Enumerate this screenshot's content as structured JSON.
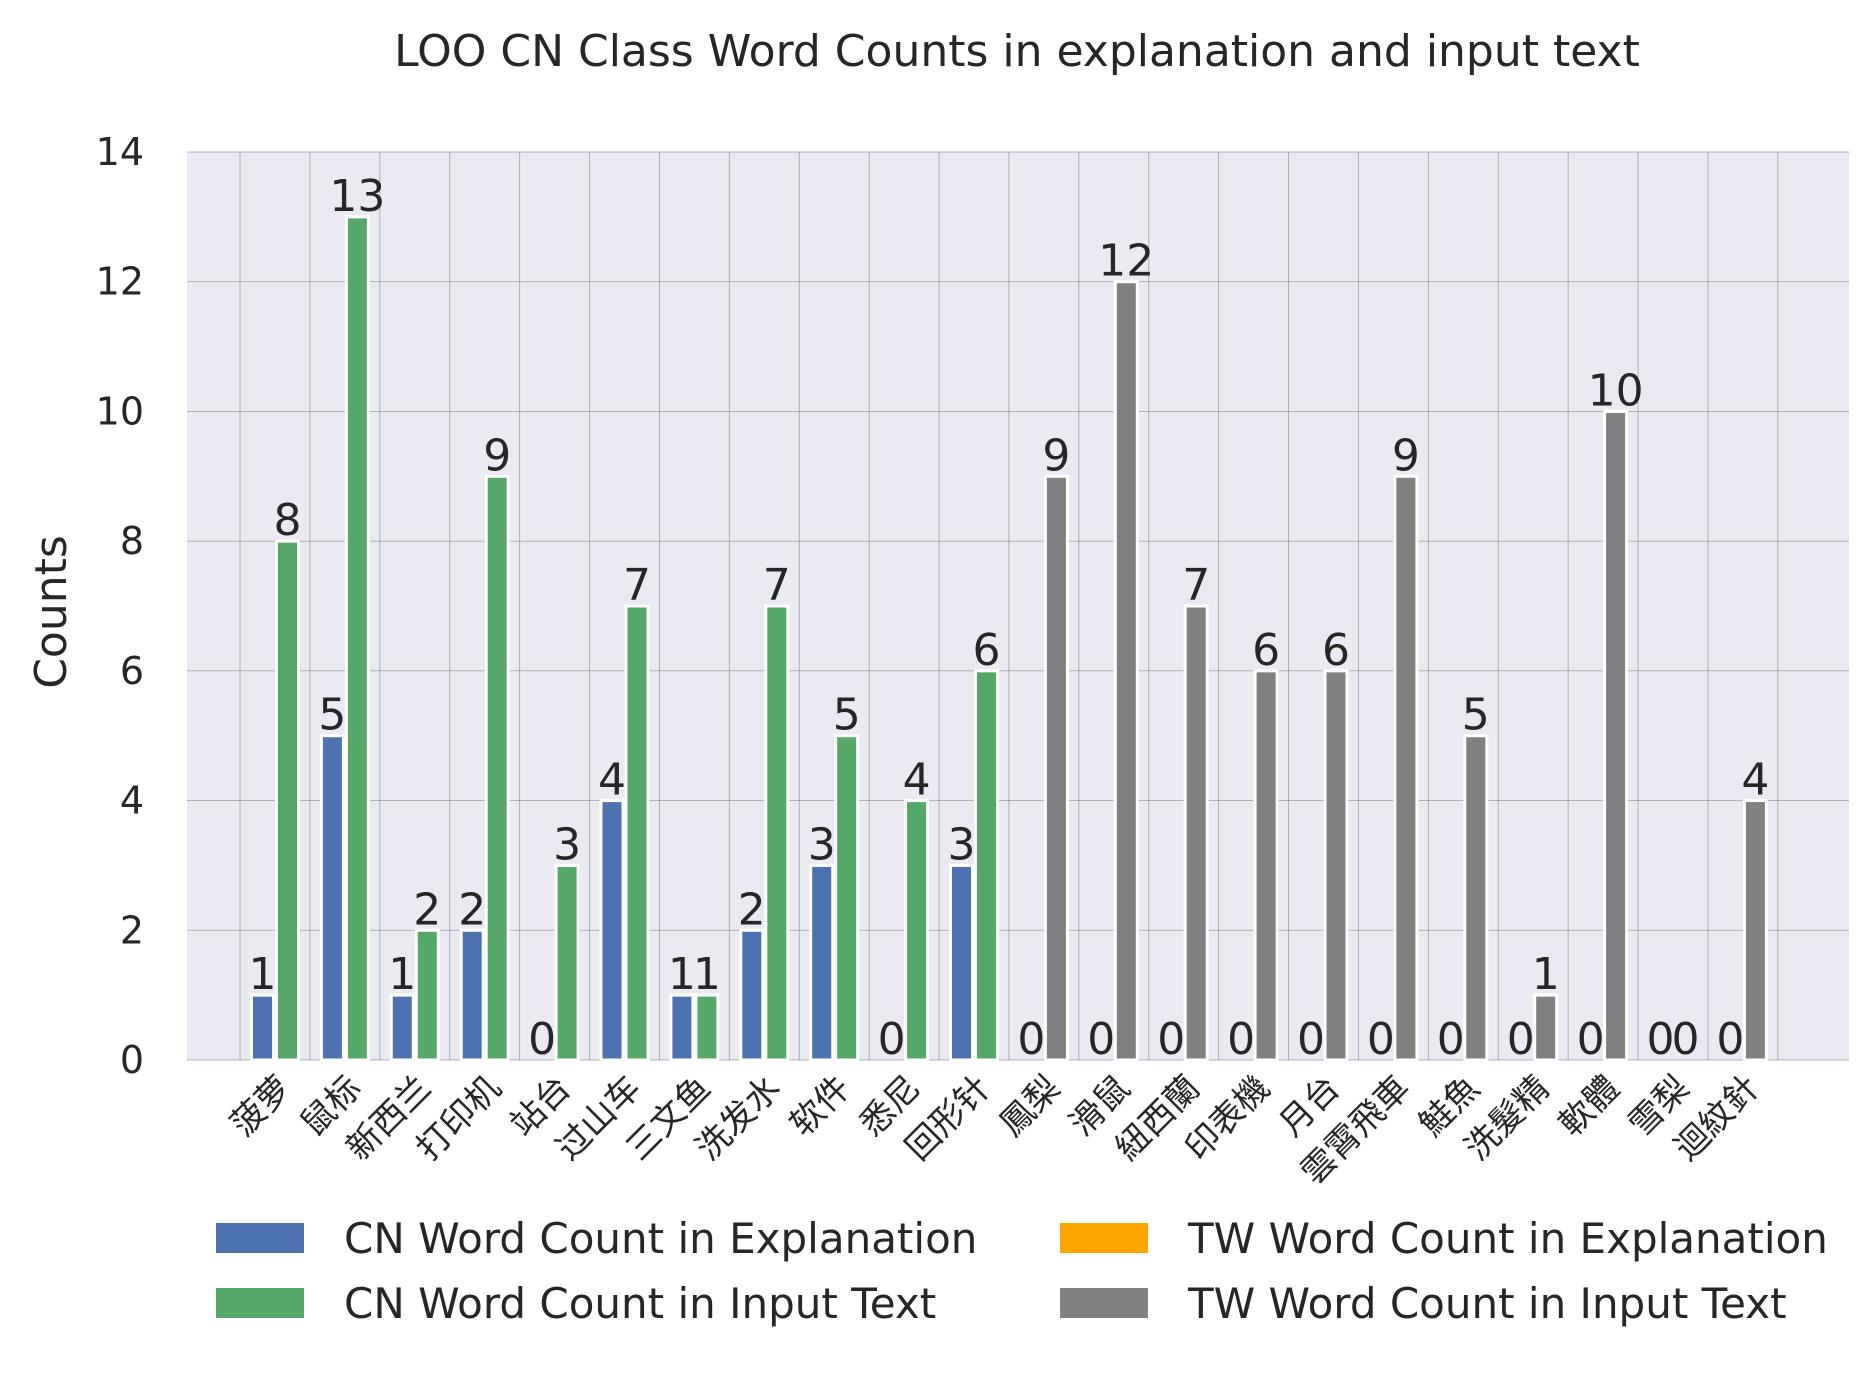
{
  "chart_data": {
    "type": "bar",
    "title": "LOO CN Class Word Counts in explanation and input text",
    "xlabel": "",
    "ylabel": "Counts",
    "ylim": [
      0,
      14
    ],
    "yticks": [
      0,
      2,
      4,
      6,
      8,
      10,
      12,
      14
    ],
    "grid": true,
    "legend_position": "bottom",
    "categories": [
      "菠萝",
      "鼠标",
      "新西兰",
      "打印机",
      "站台",
      "过山车",
      "三文鱼",
      "洗发水",
      "软件",
      "悉尼",
      "回形针",
      "鳳梨",
      "滑鼠",
      "紐西蘭",
      "印表機",
      "月台",
      "雲霄飛車",
      "鮭魚",
      "洗髮精",
      "軟體",
      "雪梨",
      "迴紋針"
    ],
    "series": [
      {
        "name": "CN Word Count in Explanation",
        "color": "#4c72b0",
        "values": [
          1,
          5,
          1,
          2,
          0,
          4,
          1,
          2,
          3,
          0,
          3,
          null,
          null,
          null,
          null,
          null,
          null,
          null,
          null,
          null,
          null,
          null
        ]
      },
      {
        "name": "CN Word Count in Input Text",
        "color": "#55a868",
        "values": [
          8,
          13,
          2,
          9,
          3,
          7,
          1,
          7,
          5,
          4,
          6,
          null,
          null,
          null,
          null,
          null,
          null,
          null,
          null,
          null,
          null,
          null
        ]
      },
      {
        "name": "TW Word Count in Explanation",
        "color": "#ffa500",
        "values": [
          null,
          null,
          null,
          null,
          null,
          null,
          null,
          null,
          null,
          null,
          null,
          0,
          0,
          0,
          0,
          0,
          0,
          0,
          0,
          0,
          0,
          0
        ]
      },
      {
        "name": "TW Word Count in Input Text",
        "color": "#808080",
        "values": [
          null,
          null,
          null,
          null,
          null,
          null,
          null,
          null,
          null,
          null,
          null,
          9,
          12,
          7,
          6,
          6,
          9,
          5,
          1,
          10,
          0,
          4
        ]
      }
    ]
  }
}
